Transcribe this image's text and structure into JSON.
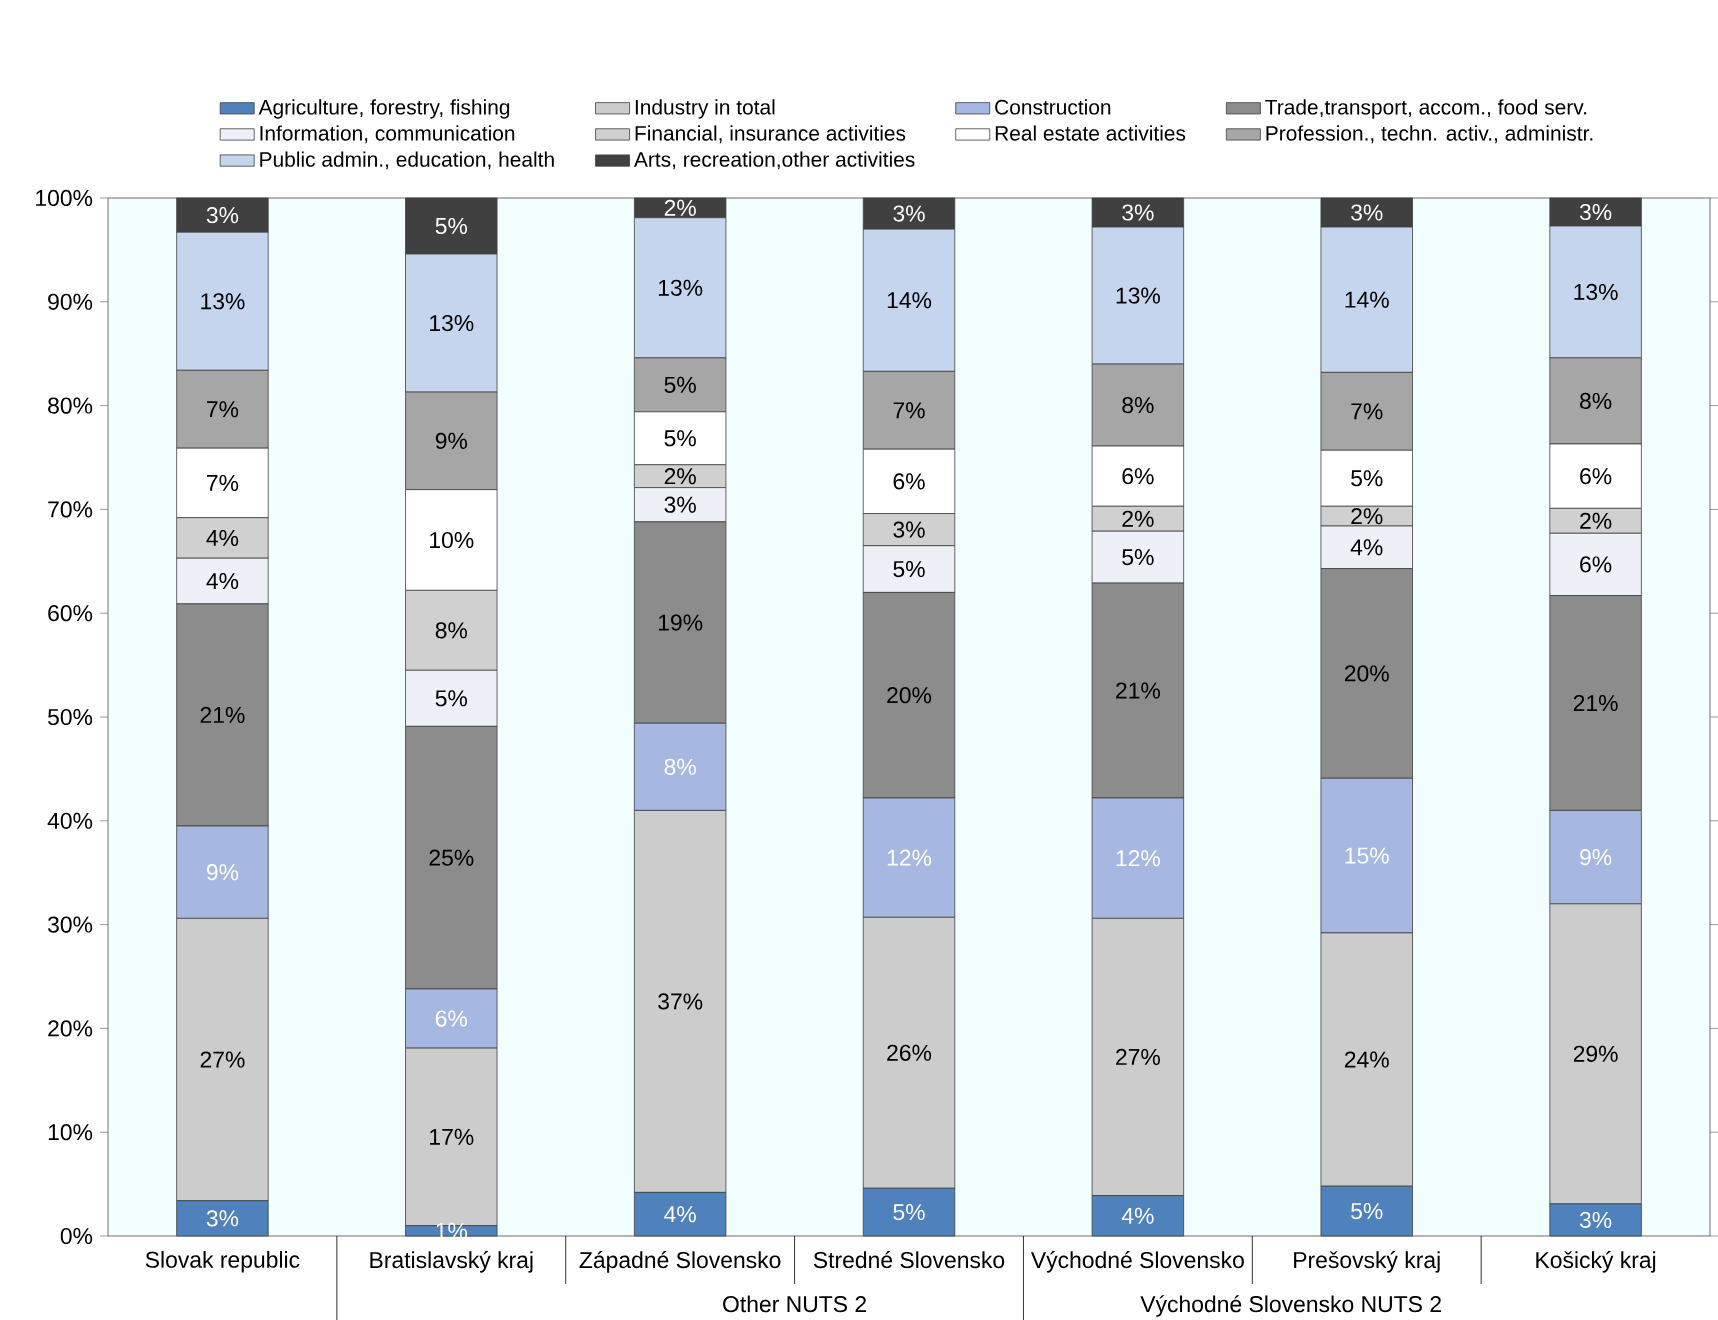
{
  "chart_data": {
    "type": "bar",
    "stacked": true,
    "legend": "top",
    "categories": [
      "Slovak republic",
      "Bratislavský kraj",
      "Západné Slovensko",
      "Stredné Slovensko",
      "Východné Slovensko",
      "Prešovský kraj",
      "Košický kraj"
    ],
    "ylim": [
      0,
      100
    ],
    "yticks": [
      {
        "value": 0,
        "label": "0%"
      },
      {
        "value": 10,
        "label": "10%"
      },
      {
        "value": 20,
        "label": "20%"
      },
      {
        "value": 30,
        "label": "30%"
      },
      {
        "value": 40,
        "label": "40%"
      },
      {
        "value": 50,
        "label": "50%"
      },
      {
        "value": 60,
        "label": "60%"
      },
      {
        "value": 70,
        "label": "70%"
      },
      {
        "value": 80,
        "label": "80%"
      },
      {
        "value": 90,
        "label": "90%"
      },
      {
        "value": 100,
        "label": "100%"
      }
    ],
    "series": [
      {
        "name": "Agriculture, forestry, fishing",
        "color": "#4f81bd",
        "values": [
          3.4,
          1.0,
          4.2,
          4.6,
          3.9,
          4.8,
          3.1
        ],
        "value_labels": [
          "3%",
          "1%",
          "4%",
          "5%",
          "4%",
          "5%",
          "3%"
        ]
      },
      {
        "name": "Industry in total",
        "color": "#cccccc",
        "values": [
          27.2,
          17.1,
          36.8,
          26.1,
          26.7,
          24.4,
          28.9
        ],
        "value_labels": [
          "27%",
          "17%",
          "37%",
          "26%",
          "27%",
          "24%",
          "29%"
        ]
      },
      {
        "name": "Construction",
        "color": "#a6b8e2",
        "values": [
          8.9,
          5.7,
          8.4,
          11.5,
          11.6,
          14.9,
          9.0
        ],
        "value_labels": [
          "9%",
          "6%",
          "8%",
          "12%",
          "12%",
          "15%",
          "9%"
        ]
      },
      {
        "name": "Trade,transport, accom., food serv.",
        "color": "#8c8c8c",
        "values": [
          21.4,
          25.3,
          19.4,
          19.8,
          20.7,
          20.2,
          20.7
        ],
        "value_labels": [
          "21%",
          "25%",
          "19%",
          "20%",
          "21%",
          "20%",
          "21%"
        ]
      },
      {
        "name": "Information, communication",
        "color": "#eef0f8",
        "values": [
          4.4,
          5.4,
          3.3,
          4.5,
          5.0,
          4.1,
          6.0
        ],
        "value_labels": [
          "4%",
          "5%",
          "3%",
          "5%",
          "5%",
          "4%",
          "6%"
        ]
      },
      {
        "name": "Financial, insurance activities",
        "color": "#d0d0d0",
        "values": [
          3.9,
          7.7,
          2.2,
          3.1,
          2.4,
          1.9,
          2.4
        ],
        "value_labels": [
          "4%",
          "8%",
          "2%",
          "3%",
          "2%",
          "2%",
          "2%"
        ]
      },
      {
        "name": "Real estate activities",
        "color": "#ffffff",
        "values": [
          6.7,
          9.7,
          5.1,
          6.2,
          5.8,
          5.4,
          6.2
        ],
        "value_labels": [
          "7%",
          "10%",
          "5%",
          "6%",
          "6%",
          "5%",
          "6%"
        ]
      },
      {
        "name": "Profession., techn. activ., administr.",
        "color": "#a6a6a6",
        "values": [
          7.5,
          9.4,
          5.2,
          7.5,
          7.9,
          7.5,
          8.3
        ],
        "value_labels": [
          "7%",
          "9%",
          "5%",
          "7%",
          "8%",
          "7%",
          "8%"
        ]
      },
      {
        "name": "Public admin., education, health",
        "color": "#c5d5ee",
        "values": [
          13.3,
          13.3,
          13.5,
          13.7,
          13.2,
          14.0,
          12.7
        ],
        "value_labels": [
          "13%",
          "13%",
          "13%",
          "14%",
          "13%",
          "14%",
          "13%"
        ]
      },
      {
        "name": "Arts, recreation,other activities",
        "color": "#404040",
        "values": [
          3.3,
          5.4,
          1.9,
          3.0,
          2.8,
          2.8,
          2.7
        ],
        "value_labels": [
          "3%",
          "5%",
          "2%",
          "3%",
          "3%",
          "3%",
          "3%"
        ]
      }
    ],
    "annotations": [
      "Other NUTS 2",
      "Východné Slovensko NUTS 2"
    ]
  }
}
